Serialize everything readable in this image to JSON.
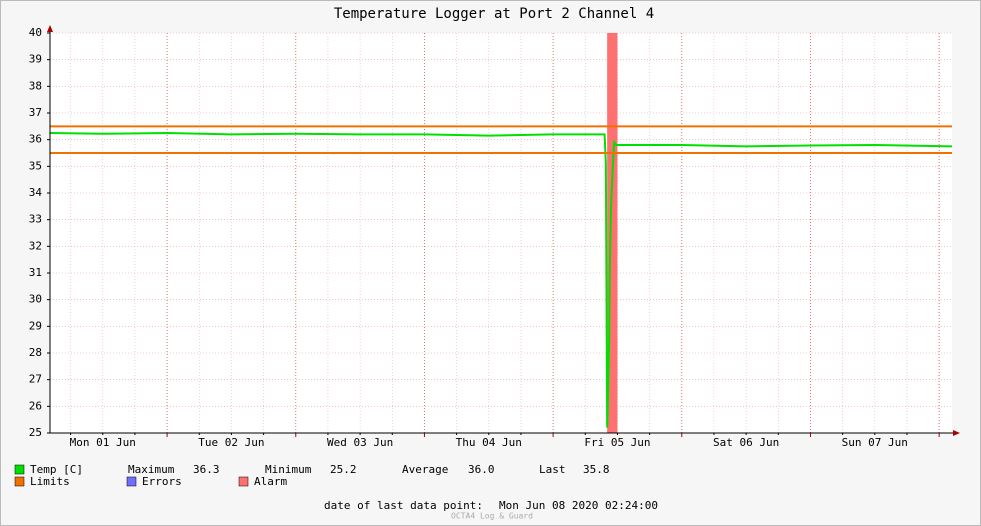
{
  "chart_data": {
    "type": "line",
    "title": "Temperature Logger at Port 2 Channel 4",
    "xlim": [
      1.09,
      8.1
    ],
    "ylim": [
      25,
      40
    ],
    "yticks": [
      25,
      26,
      27,
      28,
      29,
      30,
      31,
      32,
      33,
      34,
      35,
      36,
      37,
      38,
      39,
      40
    ],
    "xticks": [
      {
        "value": 1.5,
        "label": "Mon 01 Jun"
      },
      {
        "value": 2.5,
        "label": "Tue 02 Jun"
      },
      {
        "value": 3.5,
        "label": "Wed 03 Jun"
      },
      {
        "value": 4.5,
        "label": "Thu 04 Jun"
      },
      {
        "value": 5.5,
        "label": "Fri 05 Jun"
      },
      {
        "value": 6.5,
        "label": "Sat 06 Jun"
      },
      {
        "value": 7.5,
        "label": "Sun 07 Jun"
      }
    ],
    "grid": true,
    "series": [
      {
        "name": "Temp [C]",
        "color": "#00e000",
        "x": [
          1.09,
          1.5,
          2.0,
          2.5,
          3.0,
          3.5,
          4.0,
          4.5,
          5.0,
          5.4,
          5.41,
          5.42,
          5.425,
          5.435,
          5.44,
          5.45,
          5.465,
          5.475,
          5.49,
          5.5,
          6.0,
          6.5,
          7.0,
          7.5,
          8.1
        ],
        "values": [
          36.25,
          36.22,
          36.25,
          36.2,
          36.22,
          36.2,
          36.2,
          36.15,
          36.2,
          36.2,
          35.1,
          25.2,
          26.1,
          28.4,
          31.0,
          33.5,
          35.1,
          35.9,
          35.8,
          35.8,
          35.8,
          35.75,
          35.78,
          35.8,
          35.75
        ]
      }
    ],
    "limits": {
      "name": "Limits",
      "color": "#f07000",
      "values": [
        35.5,
        36.5
      ]
    },
    "errors": {
      "name": "Errors",
      "color": "#7070ff"
    },
    "alarm": {
      "name": "Alarm",
      "color": "#ff7070",
      "x": [
        5.42,
        5.5
      ]
    },
    "stats": [
      {
        "label": "Maximum",
        "value": "36.3"
      },
      {
        "label": "Minimum",
        "value": "25.2"
      },
      {
        "label": "Average",
        "value": "36.0"
      },
      {
        "label": "Last",
        "value": "35.8"
      }
    ],
    "footer": {
      "label": "date of last data point:",
      "value": "Mon Jun 08 2020 02:24:00"
    },
    "watermark": "OCTA4 Log & Guard"
  }
}
